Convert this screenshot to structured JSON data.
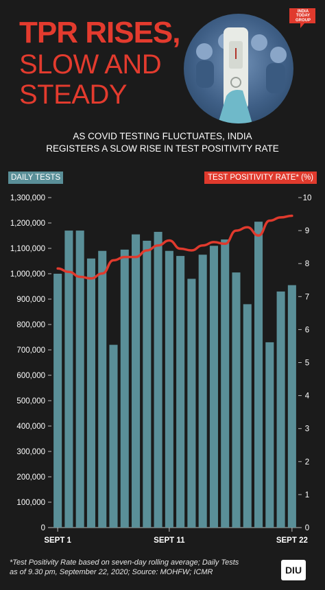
{
  "header": {
    "title_line1": "TPR RISES,",
    "title_line2": "SLOW AND",
    "title_line3": "STEADY",
    "brand": "INDIA TODAY GROUP"
  },
  "subtitle": {
    "line1": "AS COVID TESTING FLUCTUATES, INDIA",
    "line2": "REGISTERS A SLOW RISE IN TEST POSITIVITY RATE"
  },
  "legend": {
    "left": "DAILY TESTS",
    "right": "TEST POSITIVITY RATE* (%)"
  },
  "colors": {
    "background": "#1b1b1b",
    "bars": "#5a8f98",
    "line": "#e03a2d",
    "title": "#e33b2e"
  },
  "chart_data": {
    "type": "bar",
    "categories": [
      "SEPT 1",
      "",
      "",
      "",
      "",
      "",
      "",
      "",
      "",
      "",
      "SEPT 11",
      "",
      "",
      "",
      "",
      "",
      "",
      "",
      "",
      "",
      "",
      "SEPT 22"
    ],
    "series": [
      {
        "name": "DAILY TESTS",
        "type": "bar",
        "axis": "left",
        "values": [
          1000000,
          1170000,
          1170000,
          1060000,
          1090000,
          720000,
          1095000,
          1155000,
          1130000,
          1165000,
          1090000,
          1070000,
          980000,
          1075000,
          1110000,
          1135000,
          1005000,
          880000,
          1205000,
          730000,
          930000,
          955000
        ]
      },
      {
        "name": "TEST POSITIVITY RATE* (%)",
        "type": "line",
        "axis": "right",
        "values": [
          7.85,
          7.75,
          7.6,
          7.55,
          7.7,
          8.1,
          8.2,
          8.2,
          8.4,
          8.55,
          8.7,
          8.45,
          8.4,
          8.55,
          8.65,
          8.6,
          9.0,
          9.1,
          8.85,
          9.3,
          9.4,
          9.45
        ]
      }
    ],
    "y_left": {
      "min": 0,
      "max": 1300000,
      "ticks": [
        "0",
        "100,000",
        "200,000",
        "300,000",
        "400,000",
        "500,000",
        "600,000",
        "700,000",
        "800,000",
        "900,000",
        "1,000,000",
        "1,100,000",
        "1,200,000",
        "1,300,000"
      ]
    },
    "y_right": {
      "min": 0,
      "max": 10,
      "ticks": [
        "0",
        "1",
        "2",
        "3",
        "4",
        "5",
        "6",
        "7",
        "8",
        "9",
        "10"
      ]
    },
    "x_tick_labels": [
      "SEPT 1",
      "SEPT 11",
      "SEPT 22"
    ],
    "grid": false
  },
  "footnote": {
    "line1": "*Test Positivity Rate based on seven-day rolling average; Daily Tests",
    "line2": "as of 9.30 pm, September 22, 2020; Source: MOHFW; ICMR"
  },
  "logo": "DIU"
}
